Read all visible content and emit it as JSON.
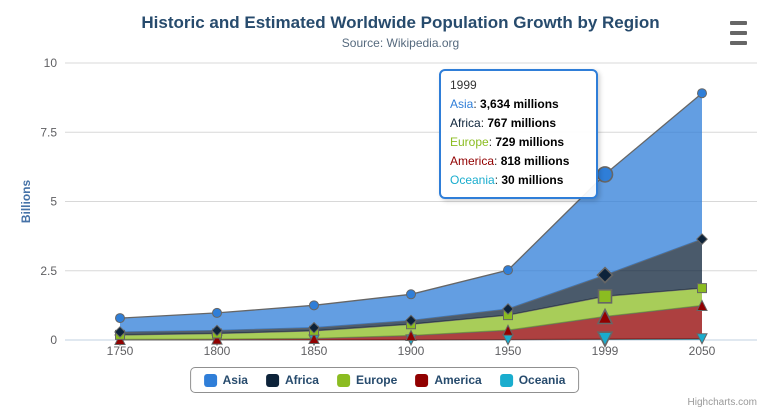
{
  "header": {
    "title": "Historic and Estimated Worldwide Population Growth by Region",
    "subtitle": "Source: Wikipedia.org"
  },
  "credit": "Highcharts.com",
  "chart_data": {
    "type": "area",
    "stacking": "normal",
    "title": "Historic and Estimated Worldwide Population Growth by Region",
    "subtitle": "Source: Wikipedia.org",
    "xlabel": "",
    "ylabel": "Billions",
    "units": "millions",
    "categories": [
      "1750",
      "1800",
      "1850",
      "1900",
      "1950",
      "1999",
      "2050"
    ],
    "series": [
      {
        "name": "Asia",
        "color": "#2f7ed8",
        "marker": "circle",
        "values": [
          502,
          635,
          809,
          947,
          1402,
          3634,
          5268
        ]
      },
      {
        "name": "Africa",
        "color": "#0d233a",
        "marker": "diamond",
        "values": [
          106,
          107,
          111,
          133,
          221,
          767,
          1766
        ]
      },
      {
        "name": "Europe",
        "color": "#8bbc21",
        "marker": "square",
        "values": [
          163,
          203,
          276,
          408,
          547,
          729,
          628
        ]
      },
      {
        "name": "America",
        "color": "#910000",
        "marker": "triangle",
        "values": [
          18,
          31,
          54,
          156,
          339,
          818,
          1201
        ]
      },
      {
        "name": "Oceania",
        "color": "#1aadce",
        "marker": "triangle-down",
        "values": [
          2,
          2,
          2,
          6,
          13,
          30,
          46
        ]
      }
    ],
    "stack_order_bottom_to_top": [
      "Oceania",
      "America",
      "Europe",
      "Africa",
      "Asia"
    ],
    "yticks": [
      0,
      2.5,
      5,
      7.5,
      10
    ],
    "ylim": [
      0,
      10
    ],
    "grid": true,
    "legend_position": "bottom",
    "hover": {
      "category": "1999",
      "category_index": 5
    }
  },
  "tooltip": {
    "header": "1999",
    "rows": [
      {
        "series": "Asia",
        "color": "#2f7ed8",
        "value": "3,634",
        "suffix": "millions"
      },
      {
        "series": "Africa",
        "color": "#0d233a",
        "value": "767",
        "suffix": "millions"
      },
      {
        "series": "Europe",
        "color": "#8bbc21",
        "value": "729",
        "suffix": "millions"
      },
      {
        "series": "America",
        "color": "#910000",
        "value": "818",
        "suffix": "millions"
      },
      {
        "series": "Oceania",
        "color": "#1aadce",
        "value": "30",
        "suffix": "millions"
      }
    ]
  },
  "colors": {
    "title": "#274b6d",
    "subtitle": "#566a7e",
    "axis_labels": "#606063",
    "y_axis_title": "#4572a7",
    "grid_line": "#d8d8d8",
    "axis_line": "#c0d0e0",
    "series_line": "#666666",
    "legend_text": "#274b6d",
    "legend_border": "#909090",
    "tooltip_border": "#2f7ed8",
    "credit_text": "#999999"
  }
}
